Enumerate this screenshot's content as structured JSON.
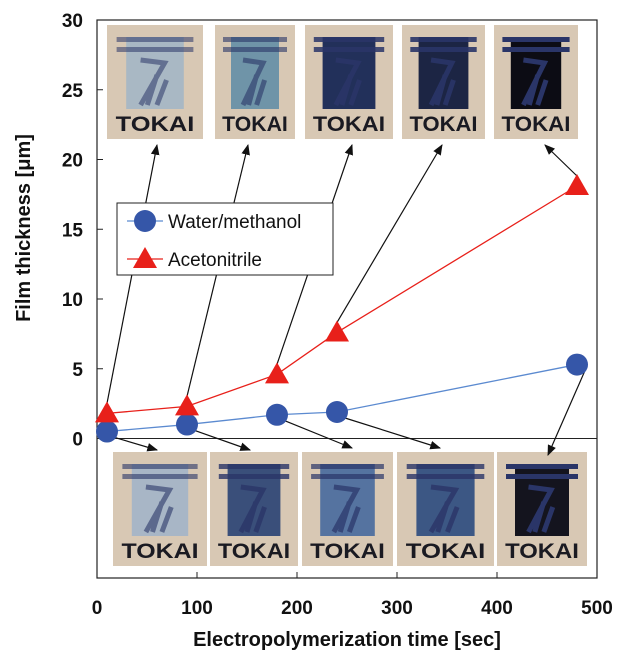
{
  "chart_data": {
    "type": "line",
    "x_label": "Electropolymerization  time [sec]",
    "y_label": "Film thickness [μm]",
    "xlim": [
      0,
      500
    ],
    "xticks": [
      0,
      100,
      200,
      300,
      400,
      500
    ],
    "ylim": [
      -10,
      30
    ],
    "yticks": [
      0,
      5,
      10,
      15,
      20,
      25,
      30
    ],
    "image_label": "TOKAI",
    "series": [
      {
        "name": "Water/methanol",
        "color": "#3556a8",
        "line_color": "#5b8ad0",
        "marker": "circle",
        "x": [
          10,
          90,
          180,
          240,
          480
        ],
        "values": [
          0.5,
          1.0,
          1.7,
          1.9,
          5.3
        ]
      },
      {
        "name": "Acetonitrile",
        "color": "#e8201a",
        "line_color": "#e8201a",
        "marker": "triangle",
        "x": [
          10,
          90,
          180,
          240,
          480
        ],
        "values": [
          1.8,
          2.3,
          4.6,
          7.6,
          18.1
        ]
      }
    ]
  }
}
